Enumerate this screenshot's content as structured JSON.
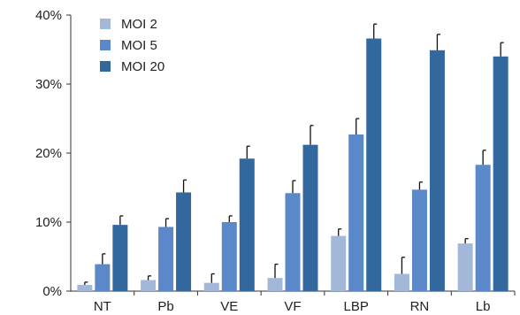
{
  "chart_data": {
    "type": "bar",
    "categories": [
      "NT",
      "Pb",
      "VE",
      "VF",
      "LBP",
      "RN",
      "Lb"
    ],
    "series": [
      {
        "name": "MOI 2",
        "color": "#a3b8d9",
        "values": [
          0.9,
          1.6,
          1.2,
          1.9,
          8.0,
          2.5,
          6.9
        ],
        "errors": [
          0.4,
          0.6,
          1.3,
          2.0,
          1.0,
          2.4,
          0.7
        ]
      },
      {
        "name": "MOI 5",
        "color": "#5b88c9",
        "values": [
          3.9,
          9.3,
          10.0,
          14.2,
          22.7,
          14.7,
          18.3
        ],
        "errors": [
          1.5,
          1.2,
          0.9,
          1.8,
          2.3,
          1.1,
          2.1
        ]
      },
      {
        "name": "MOI 20",
        "color": "#33689f",
        "values": [
          9.6,
          14.3,
          19.2,
          21.2,
          36.6,
          34.9,
          34.0
        ],
        "errors": [
          1.3,
          1.8,
          1.8,
          2.8,
          2.1,
          2.3,
          2.0
        ]
      }
    ],
    "y_ticks": [
      "0%",
      "10%",
      "20%",
      "30%",
      "40%"
    ],
    "ylim": [
      0,
      40
    ],
    "grid": false,
    "legend_position": "top-left",
    "title": "",
    "xlabel": "",
    "ylabel": ""
  }
}
